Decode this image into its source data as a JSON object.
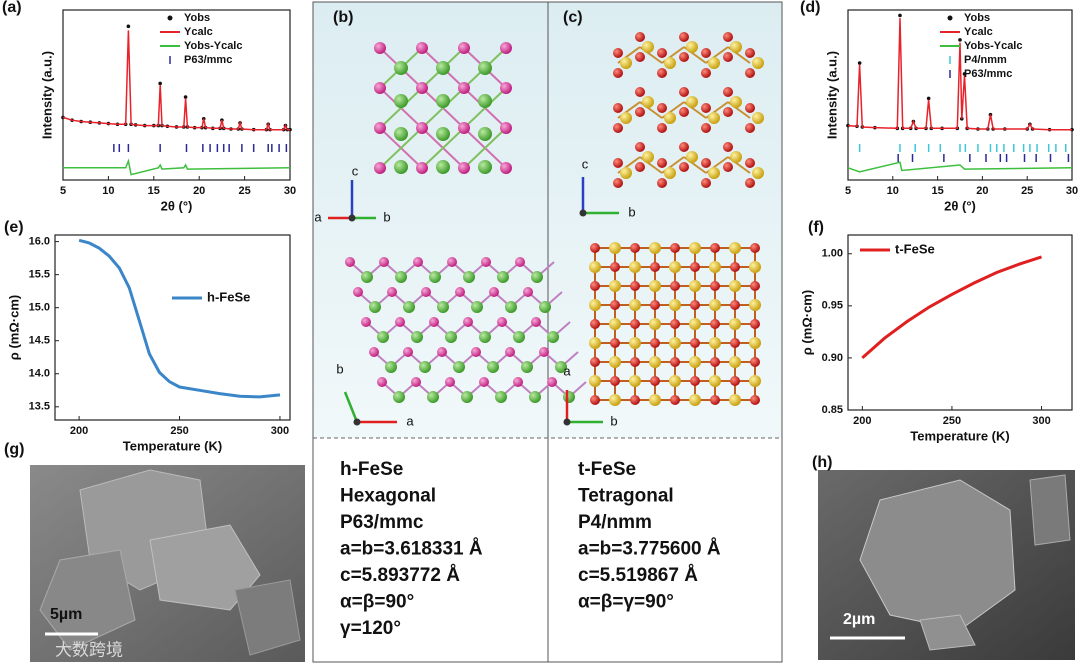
{
  "chart_data": [
    {
      "type": "xrd",
      "label": "(a)",
      "xlabel": "2θ (°)",
      "ylabel": "Intensity (a.u.)",
      "xlim": [
        5,
        30
      ],
      "xticks": [
        5,
        10,
        15,
        20,
        25,
        30
      ],
      "ylim": [
        -25,
        100
      ],
      "series": [
        {
          "name": "Yobs",
          "kind": "points",
          "color": "#111111",
          "x": [
            5,
            6,
            7,
            8,
            9,
            10,
            11,
            11.9,
            12.2,
            12.5,
            13,
            14,
            15,
            15.5,
            15.7,
            15.9,
            16.5,
            17.5,
            18.3,
            18.5,
            18.7,
            19.5,
            20.3,
            20.5,
            20.7,
            21.5,
            22.3,
            22.5,
            22.7,
            23.5,
            24.3,
            24.5,
            24.7,
            26,
            27.4,
            27.6,
            27.8,
            29.3,
            29.5,
            29.7,
            30
          ],
          "values": [
            21,
            19,
            18,
            17.5,
            17,
            16.5,
            16,
            16,
            88,
            16,
            15.5,
            15,
            15,
            15,
            46,
            15,
            14.5,
            14,
            14,
            36,
            14,
            13.5,
            13.5,
            20,
            13.5,
            13,
            13,
            19,
            13,
            12.5,
            12.5,
            17,
            12.5,
            12,
            12,
            16,
            12,
            12,
            15,
            12,
            12
          ]
        },
        {
          "name": "Ycalc",
          "kind": "line",
          "color": "#e8222a",
          "x": [
            5,
            6,
            7,
            8,
            9,
            10,
            11,
            11.9,
            12.2,
            12.5,
            13,
            14,
            15,
            15.5,
            15.7,
            15.9,
            16.5,
            17.5,
            18.3,
            18.5,
            18.7,
            19.5,
            20.3,
            20.5,
            20.7,
            21.5,
            22.3,
            22.5,
            22.7,
            23.5,
            24.3,
            24.5,
            24.7,
            26,
            27.4,
            27.6,
            27.8,
            29.3,
            29.5,
            29.7,
            30
          ],
          "values": [
            21,
            19,
            18,
            17.5,
            17,
            16.5,
            16,
            16,
            85,
            16,
            15.5,
            15,
            15,
            15,
            45,
            15,
            14.5,
            14,
            14,
            35,
            14,
            13.5,
            13.5,
            20,
            13.5,
            13,
            13,
            19,
            13,
            12.5,
            12.5,
            17,
            12.5,
            12,
            12,
            16,
            12,
            12,
            15,
            12,
            12
          ]
        },
        {
          "name": "Yobs-Ycalc",
          "kind": "line",
          "color": "#3dbf3d",
          "x": [
            5,
            11.9,
            12.2,
            12.5,
            15.5,
            15.7,
            15.9,
            18.3,
            18.5,
            18.7,
            30
          ],
          "values": [
            -16,
            -16,
            -11,
            -21,
            -16,
            -14,
            -17,
            -16,
            -14,
            -17,
            -16
          ]
        },
        {
          "name": "P63/mmc",
          "kind": "ticks",
          "color": "#2a2a9a",
          "x": [
            10.6,
            11.2,
            12.2,
            15.7,
            18.6,
            20.4,
            21.2,
            22.0,
            22.7,
            23.3,
            24.7,
            26.0,
            27.6,
            28.0,
            28.8,
            29.6
          ]
        }
      ]
    },
    {
      "type": "xrd",
      "label": "(d)",
      "xlabel": "2θ (°)",
      "ylabel": "Intensity (a.u.)",
      "xlim": [
        5,
        30
      ],
      "xticks": [
        5,
        10,
        15,
        20,
        25,
        30
      ],
      "ylim": [
        -25,
        100
      ],
      "series": [
        {
          "name": "Yobs",
          "kind": "points",
          "color": "#111111",
          "x": [
            5,
            6,
            6.3,
            6.6,
            8,
            10.5,
            10.8,
            11.1,
            12,
            12.3,
            12.6,
            13.7,
            14,
            14.3,
            15.5,
            17.2,
            17.5,
            17.7,
            18,
            18.3,
            19.5,
            20.6,
            20.9,
            21.2,
            22.5,
            25,
            25.3,
            25.6,
            27.5,
            30
          ],
          "values": [
            15,
            14.5,
            61,
            14,
            13.5,
            13,
            96,
            13,
            13,
            18,
            13,
            13,
            35,
            13,
            13,
            13,
            78,
            20,
            53,
            13,
            12.5,
            12.5,
            23,
            12.5,
            12.5,
            12.5,
            16,
            12.5,
            12,
            12
          ]
        },
        {
          "name": "Ycalc",
          "kind": "line",
          "color": "#e8222a",
          "x": [
            5,
            6,
            6.3,
            6.6,
            8,
            10.5,
            10.8,
            11.1,
            12,
            12.3,
            12.6,
            13.7,
            14,
            14.3,
            15.5,
            17.2,
            17.5,
            17.7,
            18,
            18.3,
            19.5,
            20.6,
            20.9,
            21.2,
            22.5,
            25,
            25.3,
            25.6,
            27.5,
            30
          ],
          "values": [
            15,
            14.5,
            60,
            14,
            13.5,
            13,
            94,
            13,
            13,
            18,
            13,
            13,
            34,
            13,
            13,
            13,
            76,
            20,
            52,
            13,
            12.5,
            12.5,
            23,
            12.5,
            12.5,
            12.5,
            16,
            12.5,
            12,
            12
          ]
        },
        {
          "name": "Yobs-Ycalc",
          "kind": "line",
          "color": "#3dbf3d",
          "x": [
            5,
            6.3,
            10.8,
            11,
            17.5,
            18,
            30
          ],
          "values": [
            -16,
            -19,
            -12,
            -18,
            -14,
            -17,
            -16
          ]
        },
        {
          "name": "P4/nmm",
          "kind": "ticks",
          "color": "#3cc8d8",
          "x": [
            6.3,
            10.8,
            12.5,
            14,
            15.3,
            17.5,
            18.1,
            19.5,
            20.9,
            21.6,
            22.4,
            23.5,
            24.6,
            25.3,
            26.1,
            27.4,
            28.2,
            29.3
          ]
        },
        {
          "name": "P63/mmc",
          "kind": "ticks",
          "color": "#2a2a9a",
          "x": [
            10.6,
            12.2,
            15.7,
            18.6,
            20.4,
            22.0,
            22.7,
            24.7,
            26.0,
            27.6,
            29.6
          ]
        }
      ]
    },
    {
      "type": "line",
      "label": "(e)",
      "xlabel": "Temperature (K)",
      "ylabel": "ρ (mΩ·cm)",
      "xlim": [
        188,
        305
      ],
      "xticks": [
        200,
        250,
        300
      ],
      "ylim": [
        13.3,
        16.1
      ],
      "yticks": [
        {
          "value": 13.5,
          "label": "13.5"
        },
        {
          "value": 14,
          "label": "14.0"
        },
        {
          "value": 14.5,
          "label": "14.5"
        },
        {
          "value": 15,
          "label": "15.0"
        },
        {
          "value": 15.5,
          "label": "15.5"
        },
        {
          "value": 16,
          "label": "16.0"
        }
      ],
      "series": [
        {
          "name": "h-FeSe",
          "color": "#3a86c8",
          "x": [
            200,
            205,
            210,
            215,
            220,
            225,
            230,
            235,
            240,
            245,
            250,
            260,
            270,
            280,
            290,
            300
          ],
          "values": [
            16.02,
            15.98,
            15.9,
            15.78,
            15.6,
            15.3,
            14.8,
            14.3,
            14.02,
            13.88,
            13.8,
            13.75,
            13.7,
            13.66,
            13.65,
            13.68
          ]
        }
      ]
    },
    {
      "type": "line",
      "label": "(f)",
      "xlabel": "Temperature (K)",
      "ylabel": "ρ (mΩ·cm)",
      "xlim": [
        192,
        317
      ],
      "xticks": [
        200,
        250,
        300
      ],
      "ylim": [
        0.85,
        1.018
      ],
      "yticks": [
        {
          "value": 0.85,
          "label": "0.85"
        },
        {
          "value": 0.9,
          "label": "0.90"
        },
        {
          "value": 0.95,
          "label": "0.95"
        },
        {
          "value": 1,
          "label": "1.00"
        }
      ],
      "series": [
        {
          "name": "t-FeSe",
          "color": "#e02020",
          "x": [
            200,
            212.5,
            225,
            237.5,
            250,
            262.5,
            275,
            287.5,
            300
          ],
          "values": [
            0.9,
            0.919,
            0.935,
            0.949,
            0.961,
            0.972,
            0.982,
            0.99,
            0.997
          ]
        }
      ]
    }
  ],
  "structures": [
    {
      "label": "(b)",
      "axes_top": [
        "c",
        "a",
        "b"
      ],
      "axes_bottom": [
        "b",
        "a"
      ],
      "lines": [
        "h-FeSe",
        "Hexagonal",
        "P63/mmc",
        "a=b=3.618331 Å",
        "c=5.893772 Å",
        "α=β=90°",
        "γ=120°"
      ]
    },
    {
      "label": "(c)",
      "axes_top": [
        "c",
        "b"
      ],
      "axes_bottom": [
        "a",
        "b"
      ],
      "lines": [
        "t-FeSe",
        "Tetragonal",
        "P4/nmm",
        "a=b=3.775600 Å",
        "c=5.519867 Å",
        "α=β=γ=90°"
      ]
    }
  ],
  "images": [
    {
      "label": "(g)",
      "scale": "5µm"
    },
    {
      "label": "(h)",
      "scale": "2µm"
    }
  ],
  "watermark": "大数跨境"
}
